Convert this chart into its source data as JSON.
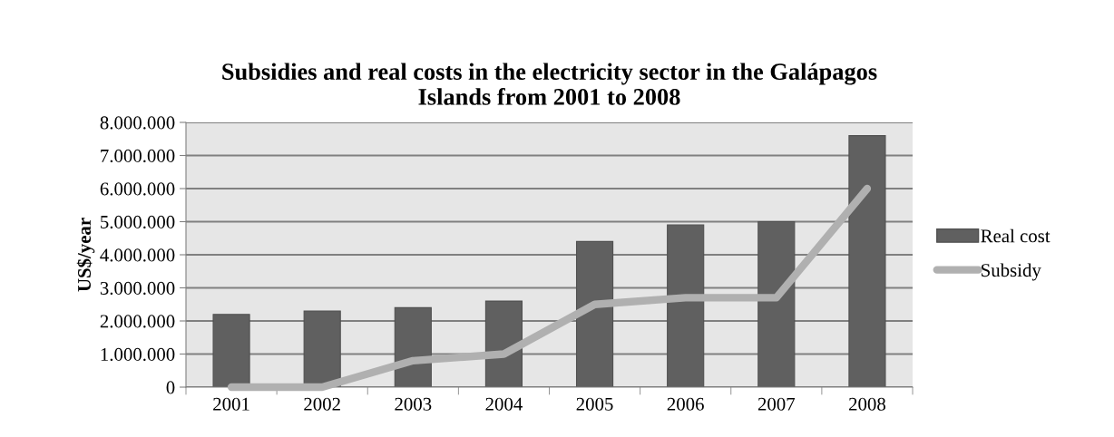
{
  "chart_data": {
    "type": "bar",
    "title": "Subsidies and real costs in the electricity sector in the Galápagos\nIslands from 2001 to 2008",
    "ylabel": "US$/year",
    "categories": [
      "2001",
      "2002",
      "2003",
      "2004",
      "2005",
      "2006",
      "2007",
      "2008"
    ],
    "series": [
      {
        "name": "Real cost",
        "color": "#606060",
        "values": [
          2200000,
          2300000,
          2400000,
          2600000,
          4400000,
          4900000,
          5000000,
          7600000
        ]
      },
      {
        "name": "Subsidy",
        "type": "line",
        "color": "#b0b0b0",
        "values": [
          0,
          0,
          800000,
          1000000,
          2500000,
          2700000,
          2700000,
          6000000
        ]
      }
    ],
    "ylim": [
      0,
      8000000
    ],
    "yticks": [
      {
        "value": 0,
        "label": "0"
      },
      {
        "value": 1000000,
        "label": "1.000.000"
      },
      {
        "value": 2000000,
        "label": "2.000.000"
      },
      {
        "value": 3000000,
        "label": "3.000.000"
      },
      {
        "value": 4000000,
        "label": "4.000.000"
      },
      {
        "value": 5000000,
        "label": "5.000.000"
      },
      {
        "value": 6000000,
        "label": "6.000.000"
      },
      {
        "value": 7000000,
        "label": "7.000.000"
      },
      {
        "value": 8000000,
        "label": "8.000.000"
      }
    ],
    "grid": "y",
    "legend": "right",
    "marker": "none",
    "line_style": "solid"
  }
}
